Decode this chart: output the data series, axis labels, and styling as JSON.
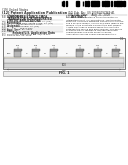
{
  "bg_color": "#ffffff",
  "barcode_color": "#000000",
  "dark_text": "#2a2a2a",
  "med_text": "#555555",
  "light_text": "#777777",
  "line_color": "#aaaaaa",
  "diagram_border": "#444444",
  "diagram_bg": "#f9f9f9",
  "substrate_fill": "#d4d4d4",
  "layer_fill": "#e2e2e2",
  "gate_fill": "#b8b8b8",
  "gate_dark": "#909090",
  "contact_fill": "#c8c8c8",
  "label_bar_fill": "#eeeeee"
}
